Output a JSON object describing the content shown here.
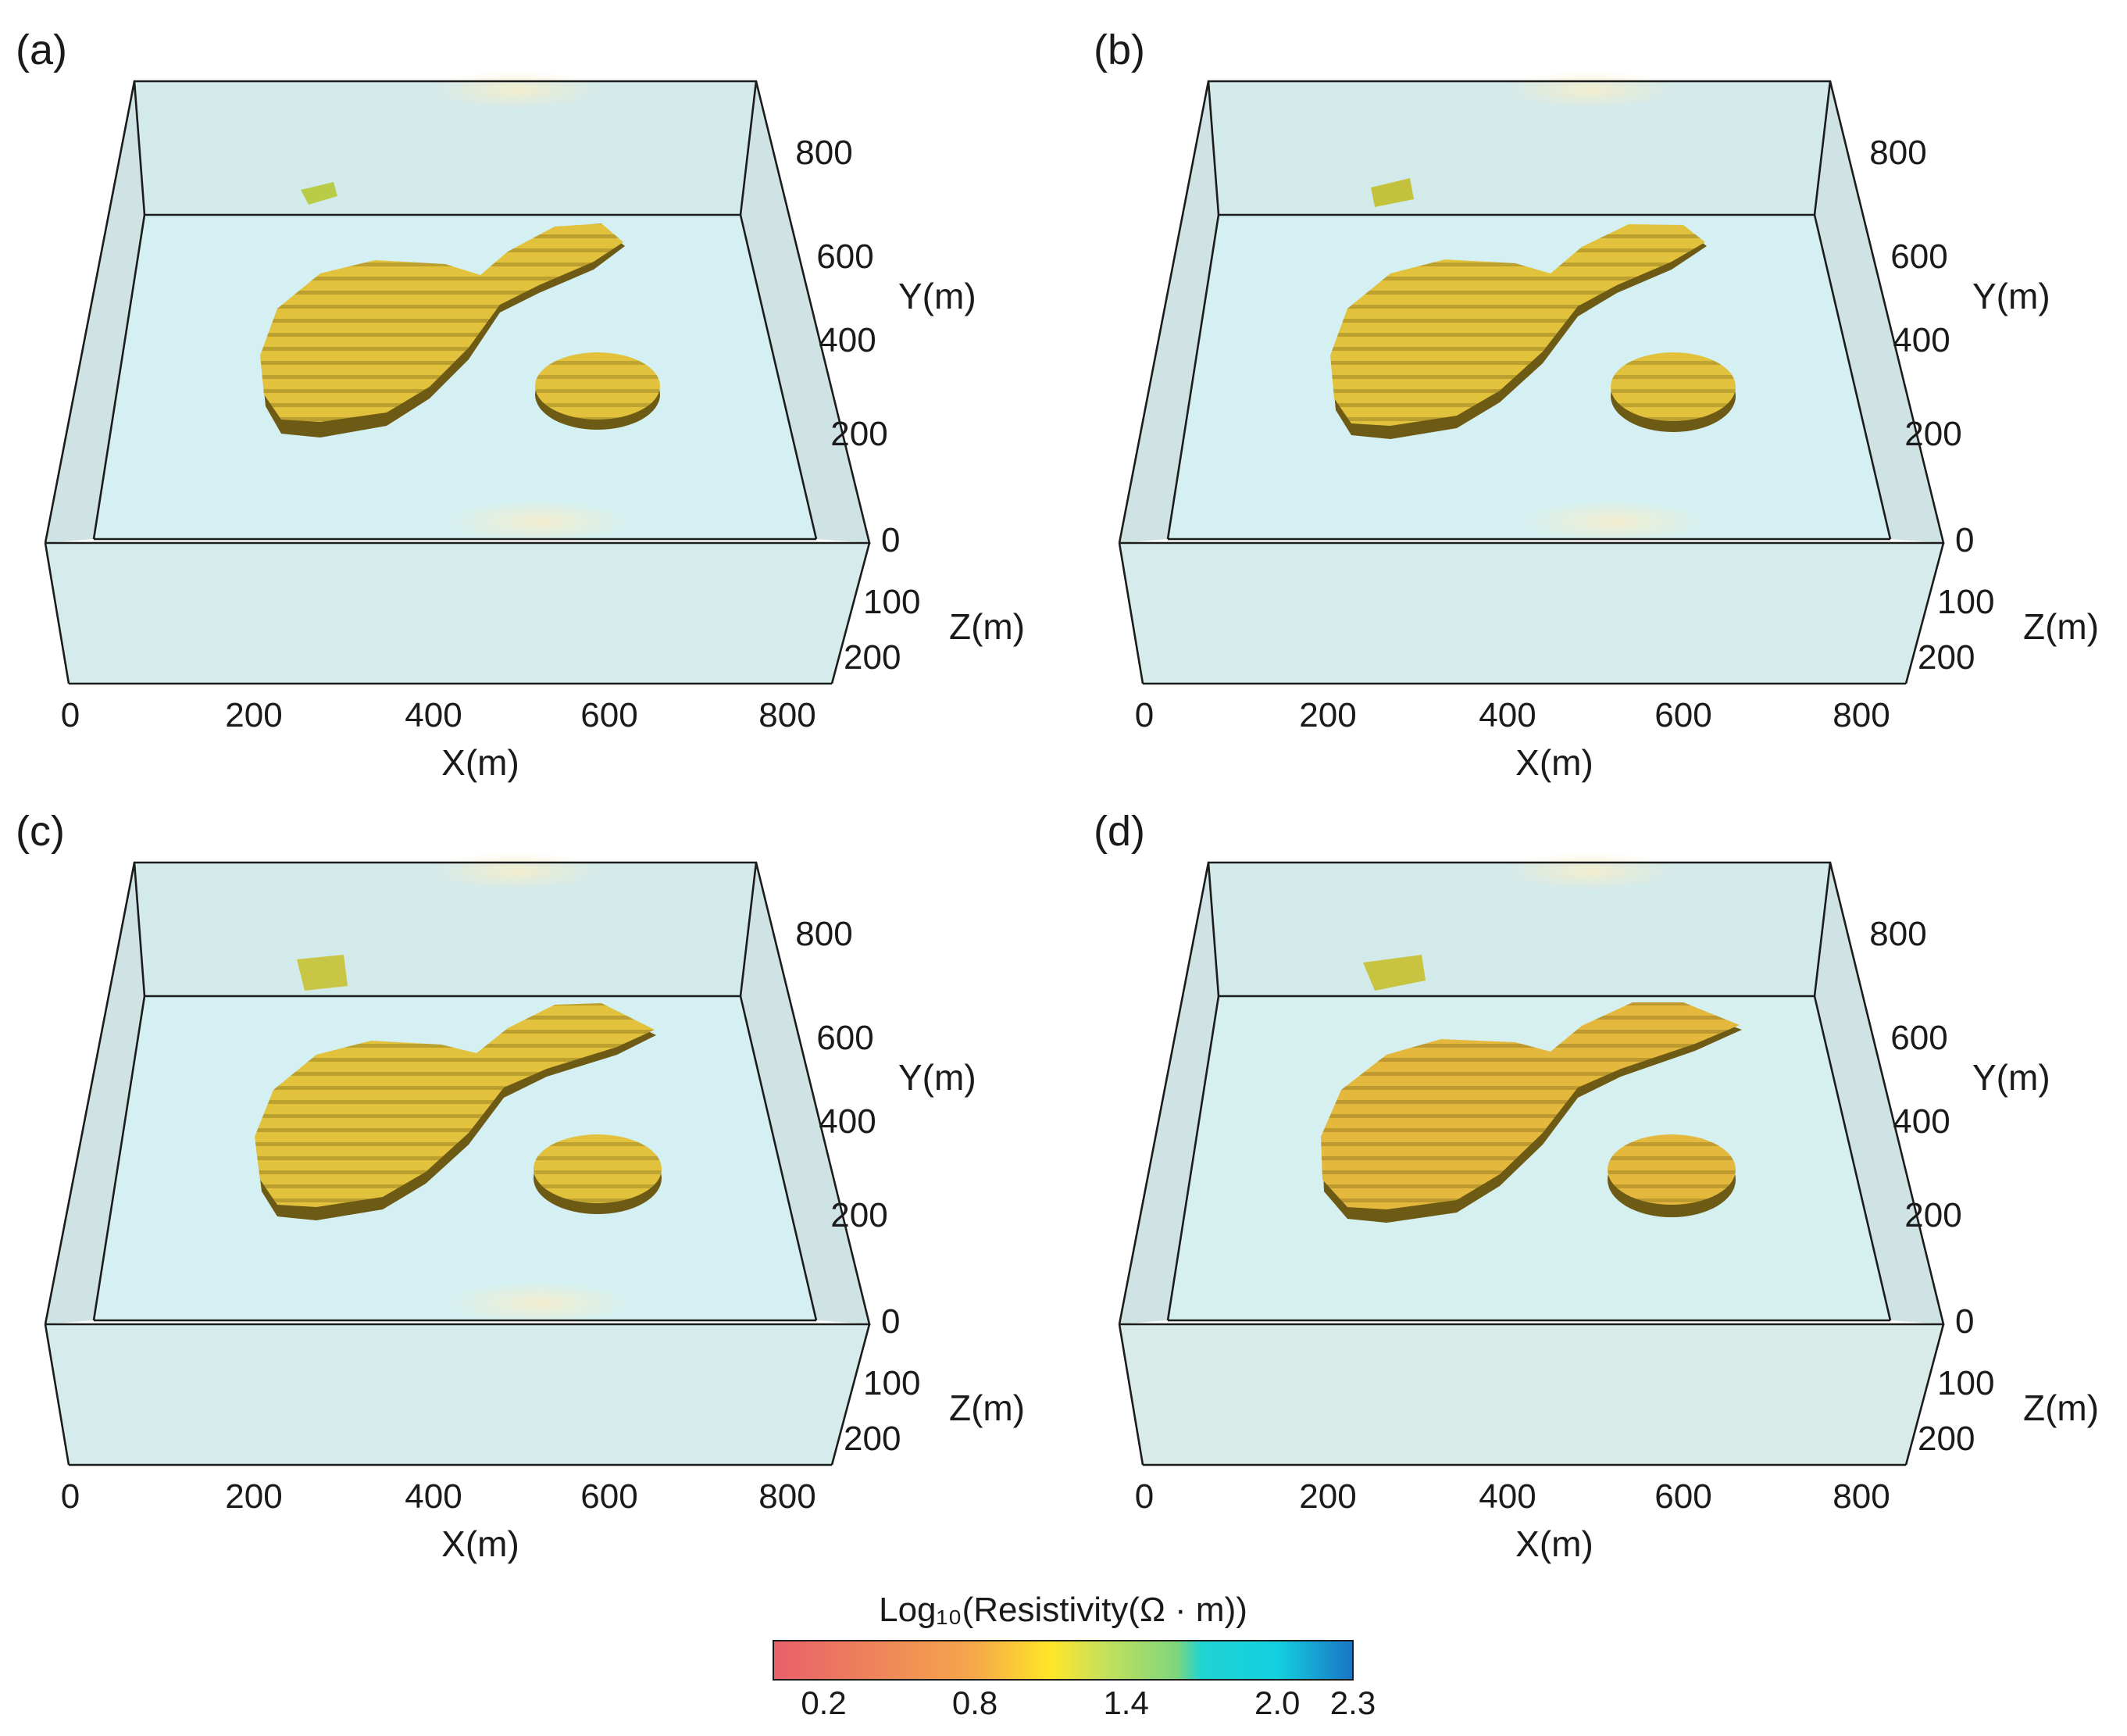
{
  "colorbar": {
    "title": "Log₁₀(Resistivity(Ω · m))",
    "ticks": [
      {
        "value": 0.2,
        "label": "0.2"
      },
      {
        "value": 0.8,
        "label": "0.8"
      },
      {
        "value": 1.4,
        "label": "1.4"
      },
      {
        "value": 2.0,
        "label": "2.0"
      },
      {
        "value": 2.3,
        "label": "2.3"
      }
    ],
    "range": [
      0.0,
      2.3
    ],
    "stops": [
      {
        "value": 0.0,
        "color": "#e8606a"
      },
      {
        "value": 0.8,
        "color": "#f5a84a"
      },
      {
        "value": 1.1,
        "color": "#ffe627"
      },
      {
        "value": 1.3,
        "color": "#c9e05a"
      },
      {
        "value": 1.6,
        "color": "#7fd67c"
      },
      {
        "value": 1.7,
        "color": "#1fd3d3"
      },
      {
        "value": 2.0,
        "color": "#14d0e0"
      },
      {
        "value": 2.3,
        "color": "#1a74c4"
      }
    ]
  },
  "axes": {
    "x": {
      "label": "X(m)",
      "ticks": [
        "0",
        "200",
        "400",
        "600",
        "800"
      ]
    },
    "y": {
      "label": "Y(m)",
      "ticks": [
        "200",
        "400",
        "600",
        "800"
      ]
    },
    "z": {
      "label": "Z(m)",
      "ticks": [
        "0",
        "100",
        "200"
      ]
    }
  },
  "panels": [
    {
      "label": "(a)"
    },
    {
      "label": "(b)"
    },
    {
      "label": "(c)"
    },
    {
      "label": "(d)"
    }
  ],
  "colors": {
    "background_medium": "#d6eeee",
    "anomaly_body": "#e2c23c",
    "anomaly_shadow": "#6d5a14",
    "anomaly_highlight": "#f0d968",
    "small_anomaly": "#b9cc48",
    "box_edge": "#1c1c1c"
  }
}
